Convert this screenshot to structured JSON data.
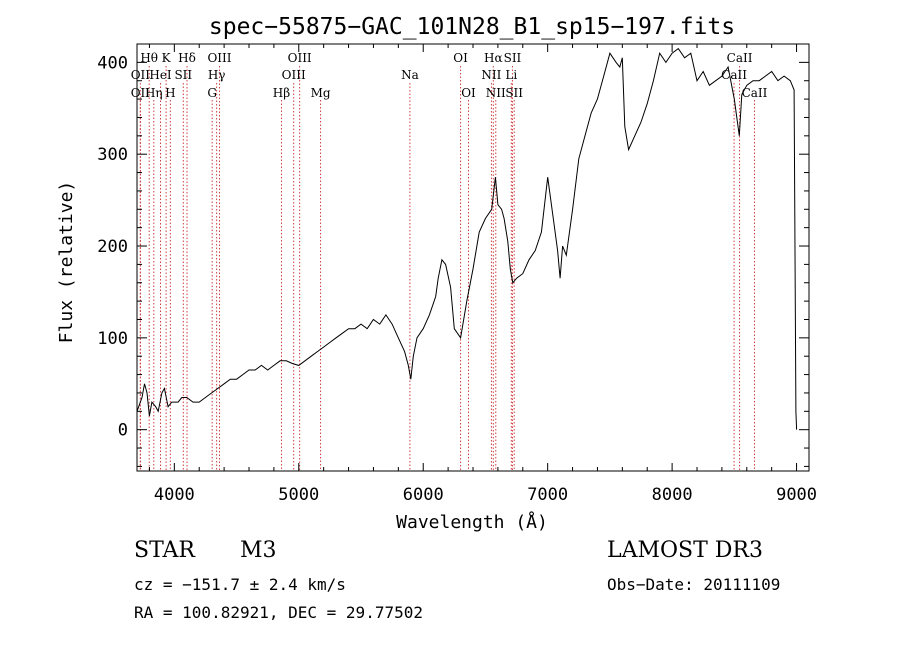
{
  "chart_data": {
    "type": "line",
    "title": "spec−55875−GAC_101N28_B1_sp15−197.fits",
    "xlabel": "Wavelength (Å)",
    "ylabel": "Flux (relative)",
    "xlim": [
      3700,
      9100
    ],
    "ylim": [
      -45,
      420
    ],
    "xticks": [
      4000,
      5000,
      6000,
      7000,
      8000,
      9000
    ],
    "yticks": [
      0,
      100,
      200,
      300,
      400
    ],
    "grid": false,
    "spectrum": {
      "name": "flux",
      "x": [
        3700,
        3740,
        3760,
        3780,
        3800,
        3820,
        3850,
        3870,
        3900,
        3920,
        3950,
        3980,
        4000,
        4030,
        4060,
        4100,
        4150,
        4200,
        4250,
        4300,
        4350,
        4400,
        4450,
        4500,
        4550,
        4600,
        4650,
        4700,
        4750,
        4800,
        4850,
        4900,
        4950,
        5000,
        5050,
        5100,
        5150,
        5200,
        5250,
        5300,
        5350,
        5400,
        5450,
        5500,
        5550,
        5600,
        5650,
        5700,
        5750,
        5800,
        5850,
        5880,
        5900,
        5920,
        5950,
        6000,
        6050,
        6100,
        6120,
        6150,
        6180,
        6220,
        6250,
        6300,
        6350,
        6400,
        6450,
        6500,
        6550,
        6580,
        6600,
        6630,
        6650,
        6680,
        6700,
        6720,
        6750,
        6800,
        6850,
        6900,
        6950,
        7000,
        7050,
        7080,
        7100,
        7120,
        7150,
        7200,
        7250,
        7300,
        7350,
        7400,
        7450,
        7500,
        7550,
        7580,
        7600,
        7620,
        7650,
        7700,
        7750,
        7800,
        7850,
        7900,
        7950,
        8000,
        8050,
        8100,
        8150,
        8200,
        8250,
        8300,
        8350,
        8400,
        8450,
        8500,
        8520,
        8540,
        8560,
        8600,
        8650,
        8700,
        8750,
        8800,
        8850,
        8900,
        8950,
        8980,
        8995,
        9000
      ],
      "y": [
        20,
        35,
        50,
        40,
        15,
        30,
        25,
        20,
        40,
        45,
        25,
        30,
        30,
        30,
        35,
        35,
        30,
        30,
        35,
        40,
        45,
        50,
        55,
        55,
        60,
        65,
        65,
        70,
        65,
        70,
        75,
        75,
        72,
        70,
        75,
        80,
        85,
        90,
        95,
        100,
        105,
        110,
        110,
        115,
        110,
        120,
        115,
        125,
        115,
        100,
        85,
        70,
        55,
        80,
        100,
        110,
        125,
        145,
        165,
        185,
        180,
        155,
        110,
        100,
        140,
        175,
        215,
        230,
        240,
        275,
        245,
        240,
        230,
        205,
        175,
        160,
        165,
        170,
        185,
        195,
        215,
        275,
        225,
        195,
        165,
        200,
        190,
        240,
        295,
        320,
        345,
        360,
        385,
        410,
        400,
        395,
        405,
        330,
        305,
        320,
        335,
        355,
        380,
        410,
        400,
        410,
        415,
        405,
        410,
        380,
        390,
        375,
        380,
        385,
        395,
        360,
        340,
        320,
        365,
        375,
        380,
        380,
        385,
        390,
        380,
        385,
        380,
        370,
        20,
        0
      ]
    },
    "lines": [
      {
        "label": "Hθ",
        "x": 3798,
        "row": 0
      },
      {
        "label": "K",
        "x": 3934,
        "row": 0
      },
      {
        "label": "Hδ",
        "x": 4102,
        "row": 0
      },
      {
        "label": "OIII",
        "x": 4363,
        "row": 0
      },
      {
        "label": "OIII",
        "x": 5007,
        "row": 0
      },
      {
        "label": "OI",
        "x": 6300,
        "row": 0
      },
      {
        "label": "Hα",
        "x": 6563,
        "row": 0
      },
      {
        "label": "SII",
        "x": 6717,
        "row": 0
      },
      {
        "label": "CaII",
        "x": 8542,
        "row": 0
      },
      {
        "label": "OII",
        "x": 3727,
        "row": 1
      },
      {
        "label": "HeI",
        "x": 3889,
        "row": 1
      },
      {
        "label": "SII",
        "x": 4072,
        "row": 1
      },
      {
        "label": "Hγ",
        "x": 4340,
        "row": 1
      },
      {
        "label": "OIII",
        "x": 4959,
        "row": 1
      },
      {
        "label": "Na",
        "x": 5893,
        "row": 1
      },
      {
        "label": "NII",
        "x": 6548,
        "row": 1
      },
      {
        "label": "Li",
        "x": 6708,
        "row": 1
      },
      {
        "label": "CaII",
        "x": 8498,
        "row": 1
      },
      {
        "label": "OII",
        "x": 3727,
        "row": 2
      },
      {
        "label": "Hη",
        "x": 3835,
        "row": 2
      },
      {
        "label": "H",
        "x": 3968,
        "row": 2
      },
      {
        "label": "G",
        "x": 4304,
        "row": 2
      },
      {
        "label": "Hβ",
        "x": 4861,
        "row": 2
      },
      {
        "label": "Mg",
        "x": 5175,
        "row": 2
      },
      {
        "label": "OI",
        "x": 6364,
        "row": 2
      },
      {
        "label": "NII",
        "x": 6583,
        "row": 2
      },
      {
        "label": "SII",
        "x": 6731,
        "row": 2
      },
      {
        "label": "CaII",
        "x": 8662,
        "row": 2
      }
    ],
    "colors": {
      "spectrum": "#000000",
      "line_marker": "#d04040",
      "axis": "#000000"
    }
  },
  "info": {
    "class_label": "STAR",
    "subclass": "M3",
    "survey": "LAMOST DR3",
    "redshift": "cz = −151.7 ± 2.4 km/s",
    "obs_date": "Obs−Date: 20111109",
    "coordinates": "RA = 100.82921, DEC =  29.77502"
  }
}
